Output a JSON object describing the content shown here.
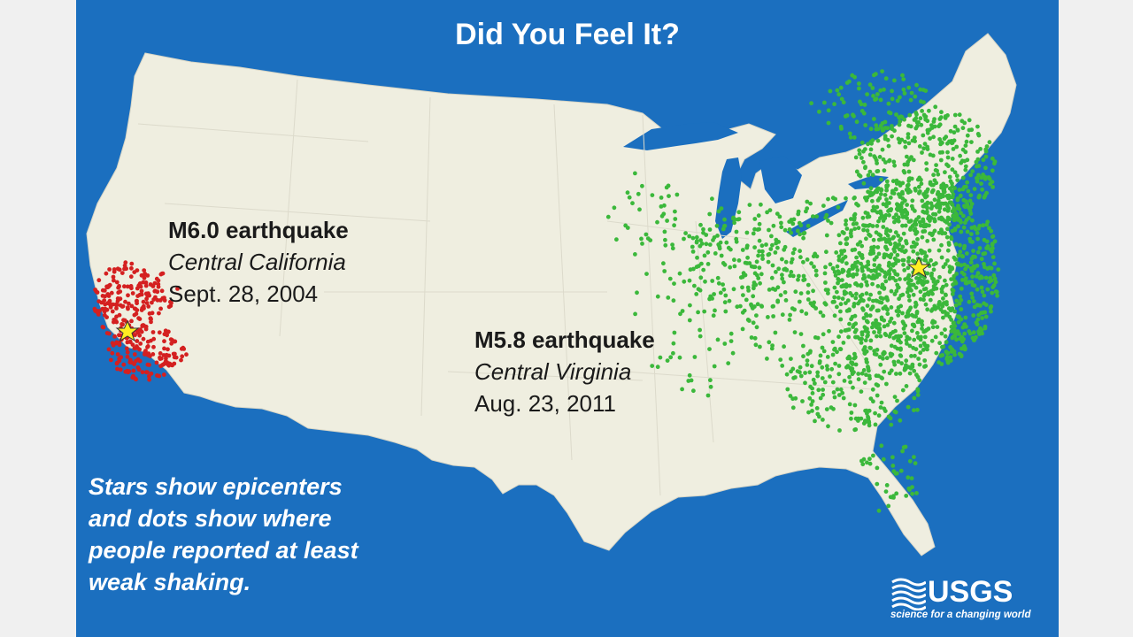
{
  "title": "Did You Feel It?",
  "quakes": [
    {
      "id": "ca",
      "magnitude_label": "M6.0 earthquake",
      "region": "Central California",
      "date": "Sept. 28, 2004",
      "dot_color": "#d42020"
    },
    {
      "id": "va",
      "magnitude_label": "M5.8 earthquake",
      "region": "Central Virginia",
      "date": "Aug. 23, 2011",
      "dot_color": "#3bb83b"
    }
  ],
  "note_lines": [
    "Stars show epicenters",
    "and dots show where",
    "people reported at least",
    "weak shaking."
  ],
  "logo": {
    "name": "USGS",
    "tagline": "science for a changing world"
  },
  "colors": {
    "ocean": "#1b6fbf",
    "land": "#efeee0",
    "star": "#ffee22"
  }
}
